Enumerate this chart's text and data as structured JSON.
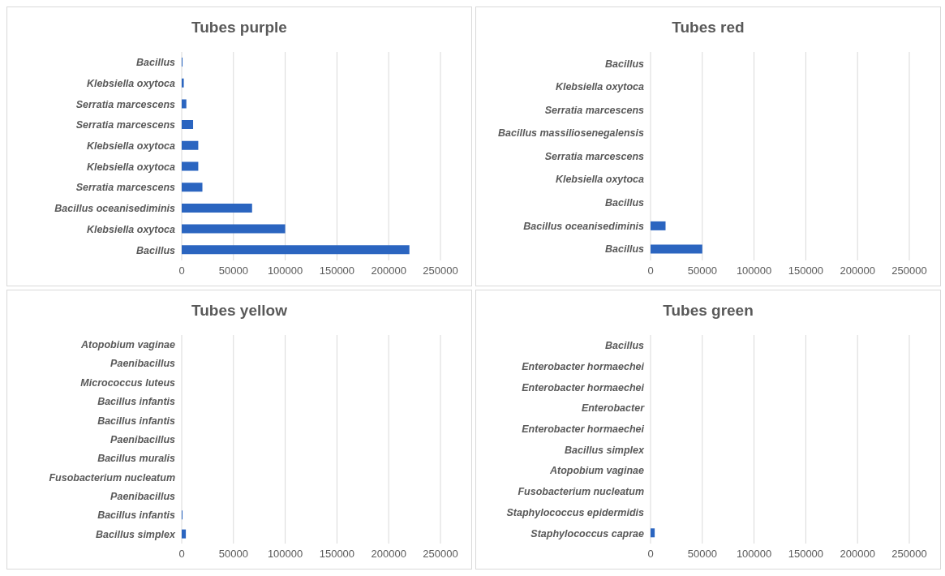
{
  "chart_data": [
    {
      "type": "bar",
      "orientation": "horizontal",
      "title": "Tubes purple",
      "categories": [
        "Bacillus",
        "Klebsiella oxytoca",
        "Serratia marcescens",
        "Serratia marcescens",
        "Klebsiella oxytoca",
        "Klebsiella oxytoca",
        "Serratia marcescens",
        "Bacillus oceanisediminis",
        "Klebsiella oxytoca",
        "Bacillus"
      ],
      "values": [
        800,
        2000,
        4500,
        11000,
        16000,
        16000,
        20000,
        68000,
        100000,
        220000
      ],
      "color": "#2b65c0",
      "xlim": [
        0,
        250000
      ],
      "xticks": [
        0,
        50000,
        100000,
        150000,
        200000,
        250000
      ],
      "grid": "x"
    },
    {
      "type": "bar",
      "orientation": "horizontal",
      "title": "Tubes red",
      "categories": [
        "Bacillus",
        "Klebsiella oxytoca",
        "Serratia marcescens",
        "Bacillus massiliosenegalensis",
        "Serratia marcescens",
        "Klebsiella oxytoca",
        "Bacillus",
        "Bacillus oceanisediminis",
        "Bacillus"
      ],
      "values": [
        0,
        0,
        0,
        0,
        0,
        0,
        0,
        14500,
        50000
      ],
      "color": "#2b65c0",
      "xlim": [
        0,
        250000
      ],
      "xticks": [
        0,
        50000,
        100000,
        150000,
        200000,
        250000
      ],
      "grid": "x"
    },
    {
      "type": "bar",
      "orientation": "horizontal",
      "title": "Tubes yellow",
      "categories": [
        "Atopobium vaginae",
        "Paenibacillus",
        "Micrococcus luteus",
        "Bacillus infantis",
        "Bacillus infantis",
        "Paenibacillus",
        "Bacillus muralis",
        "Fusobacterium nucleatum",
        "Paenibacillus",
        "Bacillus infantis",
        "Bacillus simplex"
      ],
      "values": [
        0,
        0,
        0,
        0,
        0,
        0,
        0,
        0,
        0,
        800,
        4000
      ],
      "color": "#2b65c0",
      "xlim": [
        0,
        250000
      ],
      "xticks": [
        0,
        50000,
        100000,
        150000,
        200000,
        250000
      ],
      "grid": "x"
    },
    {
      "type": "bar",
      "orientation": "horizontal",
      "title": "Tubes green",
      "categories": [
        "Bacillus",
        "Enterobacter hormaechei",
        "Enterobacter hormaechei",
        "Enterobacter",
        "Enterobacter hormaechei",
        "Bacillus simplex",
        "Atopobium vaginae",
        "Fusobacterium nucleatum",
        "Staphylococcus epidermidis",
        "Staphylococcus caprae"
      ],
      "values": [
        0,
        0,
        0,
        0,
        0,
        0,
        0,
        0,
        0,
        4000
      ],
      "color": "#2b65c0",
      "xlim": [
        0,
        250000
      ],
      "xticks": [
        0,
        50000,
        100000,
        150000,
        200000,
        250000
      ],
      "grid": "x"
    }
  ]
}
